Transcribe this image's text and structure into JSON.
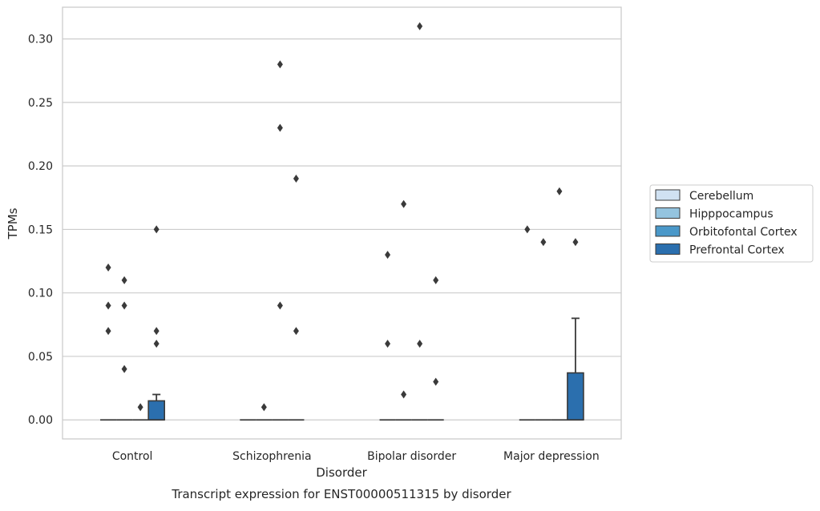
{
  "chart_data": {
    "type": "boxplot",
    "title": "Transcript expression for ENST00000511315 by disorder",
    "xlabel": "Disorder",
    "ylabel": "TPMs",
    "categories": [
      "Control",
      "Schizophrenia",
      "Bipolar disorder",
      "Major depression"
    ],
    "ylim": [
      -0.015,
      0.325
    ],
    "yticks": [
      0.0,
      0.05,
      0.1,
      0.15,
      0.2,
      0.25,
      0.3
    ],
    "ytick_labels": [
      "0.00",
      "0.05",
      "0.10",
      "0.15",
      "0.20",
      "0.25",
      "0.30"
    ],
    "grid": "horizontal",
    "legend_position": "right",
    "series": [
      {
        "name": "Cerebellum",
        "color": "#d0e1f2",
        "boxes": [
          {
            "q1": 0,
            "median": 0,
            "q3": 0,
            "whisker_low": 0,
            "whisker_high": 0,
            "outliers": [
              0.12,
              0.09,
              0.07
            ]
          },
          {
            "q1": 0,
            "median": 0,
            "q3": 0,
            "whisker_low": 0,
            "whisker_high": 0,
            "outliers": []
          },
          {
            "q1": 0,
            "median": 0,
            "q3": 0,
            "whisker_low": 0,
            "whisker_high": 0,
            "outliers": [
              0.13,
              0.06
            ]
          },
          {
            "q1": 0,
            "median": 0,
            "q3": 0,
            "whisker_low": 0,
            "whisker_high": 0,
            "outliers": [
              0.15
            ]
          }
        ]
      },
      {
        "name": "Hipppocampus",
        "color": "#94c4df",
        "boxes": [
          {
            "q1": 0,
            "median": 0,
            "q3": 0,
            "whisker_low": 0,
            "whisker_high": 0,
            "outliers": [
              0.11,
              0.09,
              0.04
            ]
          },
          {
            "q1": 0,
            "median": 0,
            "q3": 0,
            "whisker_low": 0,
            "whisker_high": 0,
            "outliers": [
              0.01
            ]
          },
          {
            "q1": 0,
            "median": 0,
            "q3": 0,
            "whisker_low": 0,
            "whisker_high": 0,
            "outliers": [
              0.17,
              0.02
            ]
          },
          {
            "q1": 0,
            "median": 0,
            "q3": 0,
            "whisker_low": 0,
            "whisker_high": 0,
            "outliers": [
              0.14
            ]
          }
        ]
      },
      {
        "name": "Orbitofontal Cortex",
        "color": "#4a98c9",
        "boxes": [
          {
            "q1": 0,
            "median": 0,
            "q3": 0,
            "whisker_low": 0,
            "whisker_high": 0,
            "outliers": [
              0.01
            ]
          },
          {
            "q1": 0,
            "median": 0,
            "q3": 0,
            "whisker_low": 0,
            "whisker_high": 0,
            "outliers": [
              0.28,
              0.23,
              0.09
            ]
          },
          {
            "q1": 0,
            "median": 0,
            "q3": 0,
            "whisker_low": 0,
            "whisker_high": 0,
            "outliers": [
              0.31,
              0.06
            ]
          },
          {
            "q1": 0,
            "median": 0,
            "q3": 0,
            "whisker_low": 0,
            "whisker_high": 0,
            "outliers": [
              0.18
            ]
          }
        ]
      },
      {
        "name": "Prefrontal Cortex",
        "color": "#2b6fae",
        "boxes": [
          {
            "q1": 0,
            "median": 0,
            "q3": 0.015,
            "whisker_low": 0,
            "whisker_high": 0.02,
            "outliers": [
              0.15,
              0.07,
              0.06
            ]
          },
          {
            "q1": 0,
            "median": 0,
            "q3": 0,
            "whisker_low": 0,
            "whisker_high": 0,
            "outliers": [
              0.19,
              0.07
            ]
          },
          {
            "q1": 0,
            "median": 0,
            "q3": 0,
            "whisker_low": 0,
            "whisker_high": 0,
            "outliers": [
              0.11,
              0.03
            ]
          },
          {
            "q1": 0,
            "median": 0,
            "q3": 0.037,
            "whisker_low": 0,
            "whisker_high": 0.08,
            "outliers": [
              0.14
            ]
          }
        ]
      }
    ]
  }
}
